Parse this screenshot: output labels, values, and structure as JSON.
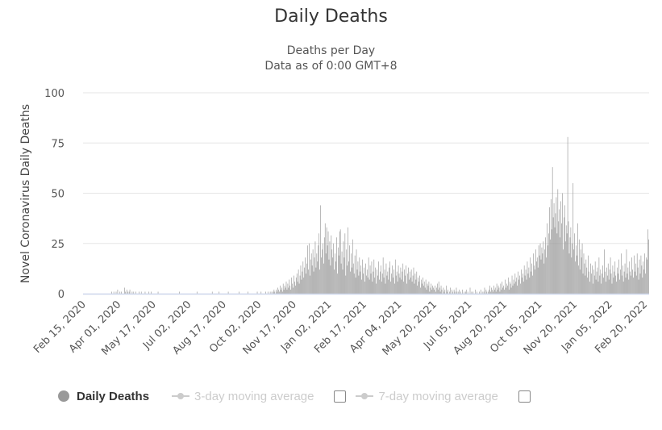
{
  "chart_data": {
    "type": "bar",
    "title": "Daily Deaths",
    "subtitle_lines": [
      "Deaths per Day",
      "Data as of 0:00 GMT+8"
    ],
    "ylabel": "Novel Coronavirus Daily Deaths",
    "xlabel": "",
    "ylim": [
      0,
      100
    ],
    "y_ticks": [
      0,
      25,
      50,
      75,
      100
    ],
    "x_start": "2020-02-15",
    "x_tick_interval_days": 46,
    "x_tick_labels": [
      "Feb 15, 2020",
      "Apr 01, 2020",
      "May 17, 2020",
      "Jul 02, 2020",
      "Aug 17, 2020",
      "Oct 02, 2020",
      "Nov 17, 2020",
      "Jan 02, 2021",
      "Feb 17, 2021",
      "Apr 04, 2021",
      "May 20, 2021",
      "Jul 05, 2021",
      "Aug 20, 2021",
      "Oct 05, 2021",
      "Nov 20, 2021",
      "Jan 05, 2022",
      "Feb 20, 2022"
    ],
    "grid": true,
    "bar_color": "#999999",
    "series": [
      {
        "name": "Daily Deaths",
        "values": [
          0,
          0,
          0,
          0,
          0,
          0,
          0,
          0,
          0,
          0,
          0,
          0,
          0,
          0,
          0,
          0,
          0,
          0,
          0,
          0,
          0,
          0,
          0,
          0,
          0,
          0,
          0,
          0,
          0,
          0,
          0,
          0,
          0,
          0,
          0,
          0,
          0,
          1,
          0,
          0,
          1,
          0,
          0,
          1,
          0,
          2,
          0,
          0,
          1,
          0,
          1,
          0,
          0,
          0,
          3,
          1,
          0,
          2,
          1,
          0,
          1,
          2,
          0,
          0,
          1,
          0,
          1,
          0,
          0,
          1,
          0,
          0,
          0,
          1,
          0,
          0,
          1,
          0,
          0,
          0,
          0,
          1,
          0,
          0,
          0,
          0,
          1,
          0,
          0,
          1,
          0,
          0,
          0,
          0,
          0,
          0,
          0,
          0,
          1,
          0,
          0,
          0,
          0,
          0,
          0,
          0,
          0,
          0,
          0,
          0,
          0,
          0,
          0,
          0,
          0,
          0,
          0,
          0,
          0,
          0,
          0,
          0,
          0,
          0,
          0,
          0,
          1,
          0,
          0,
          0,
          0,
          0,
          0,
          0,
          0,
          0,
          0,
          0,
          0,
          0,
          0,
          0,
          0,
          0,
          0,
          0,
          0,
          0,
          0,
          1,
          0,
          0,
          0,
          0,
          0,
          0,
          0,
          0,
          0,
          0,
          0,
          0,
          0,
          0,
          0,
          0,
          0,
          0,
          0,
          1,
          0,
          0,
          0,
          0,
          0,
          0,
          0,
          0,
          1,
          0,
          0,
          0,
          0,
          0,
          0,
          0,
          0,
          0,
          0,
          0,
          1,
          0,
          0,
          0,
          0,
          0,
          0,
          0,
          0,
          0,
          0,
          0,
          0,
          0,
          1,
          0,
          0,
          0,
          0,
          0,
          0,
          0,
          0,
          0,
          0,
          0,
          1,
          0,
          0,
          0,
          0,
          0,
          0,
          0,
          0,
          0,
          0,
          0,
          1,
          0,
          0,
          0,
          0,
          1,
          0,
          0,
          0,
          0,
          0,
          1,
          0,
          0,
          1,
          0,
          0,
          1,
          0,
          1,
          0,
          1,
          2,
          1,
          0,
          2,
          1,
          3,
          2,
          1,
          4,
          2,
          3,
          1,
          5,
          2,
          4,
          3,
          6,
          2,
          5,
          3,
          7,
          4,
          2,
          8,
          5,
          3,
          9,
          6,
          4,
          8,
          10,
          6,
          12,
          5,
          9,
          14,
          7,
          11,
          16,
          8,
          13,
          18,
          10,
          15,
          24,
          12,
          25,
          9,
          17,
          20,
          14,
          22,
          11,
          18,
          26,
          13,
          20,
          16,
          24,
          30,
          12,
          44,
          18,
          22,
          25,
          15,
          28,
          35,
          20,
          33,
          24,
          31,
          17,
          26,
          14,
          29,
          22,
          18,
          25,
          12,
          20,
          16,
          28,
          10,
          23,
          19,
          31,
          32,
          15,
          21,
          12,
          26,
          18,
          30,
          9,
          22,
          14,
          33,
          16,
          24,
          11,
          20,
          13,
          27,
          15,
          10,
          19,
          8,
          22,
          12,
          16,
          9,
          18,
          11,
          14,
          7,
          17,
          10,
          13,
          6,
          15,
          9,
          12,
          8,
          18,
          7,
          14,
          10,
          16,
          6,
          11,
          17,
          8,
          13,
          5,
          12,
          9,
          16,
          7,
          11,
          14,
          6,
          10,
          18,
          8,
          12,
          5,
          15,
          9,
          11,
          7,
          13,
          16,
          6,
          10,
          14,
          8,
          12,
          5,
          17,
          9,
          11,
          6,
          14,
          10,
          8,
          13,
          7,
          11,
          15,
          6,
          12,
          9,
          14,
          5,
          10,
          13,
          7,
          11,
          8,
          12,
          6,
          9,
          13,
          5,
          10,
          7,
          11,
          4,
          8,
          6,
          9,
          3,
          7,
          5,
          8,
          4,
          6,
          3,
          7,
          2,
          5,
          4,
          6,
          1,
          3,
          5,
          2,
          4,
          3,
          2,
          4,
          1,
          3,
          5,
          2,
          6,
          3,
          1,
          4,
          2,
          0,
          3,
          1,
          2,
          0,
          4,
          1,
          2,
          0,
          1,
          3,
          0,
          2,
          1,
          0,
          2,
          1,
          0,
          3,
          1,
          0,
          1,
          2,
          0,
          1,
          0,
          2,
          0,
          1,
          0,
          1,
          2,
          0,
          1,
          0,
          0,
          3,
          0,
          1,
          0,
          1,
          0,
          0,
          2,
          0,
          1,
          0,
          0,
          1,
          0,
          2,
          0,
          1,
          0,
          1,
          3,
          0,
          2,
          1,
          0,
          1,
          2,
          4,
          1,
          3,
          2,
          1,
          4,
          2,
          3,
          1,
          5,
          2,
          4,
          3,
          1,
          5,
          2,
          6,
          3,
          4,
          2,
          7,
          3,
          5,
          4,
          8,
          2,
          6,
          5,
          3,
          9,
          4,
          7,
          5,
          10,
          6,
          8,
          4,
          11,
          7,
          9,
          5,
          12,
          8,
          10,
          6,
          14,
          9,
          12,
          7,
          16,
          10,
          13,
          8,
          18,
          11,
          15,
          9,
          20,
          14,
          12,
          22,
          16,
          18,
          13,
          24,
          19,
          25,
          17,
          23,
          20,
          26,
          15,
          22,
          28,
          18,
          35,
          24,
          30,
          43,
          27,
          47,
          32,
          63,
          38,
          45,
          33,
          40,
          48,
          30,
          52,
          36,
          42,
          28,
          46,
          35,
          50,
          22,
          38,
          44,
          26,
          34,
          30,
          78,
          36,
          20,
          28,
          33,
          18,
          25,
          55,
          22,
          30,
          16,
          24,
          19,
          35,
          14,
          27,
          12,
          22,
          18,
          25,
          10,
          20,
          15,
          9,
          17,
          13,
          8,
          19,
          11,
          6,
          15,
          10,
          14,
          5,
          12,
          9,
          16,
          7,
          11,
          13,
          6,
          18,
          9,
          12,
          5,
          10,
          14,
          8,
          22,
          11,
          6,
          13,
          9,
          15,
          7,
          12,
          18,
          10,
          5,
          14,
          8,
          11,
          16,
          9,
          6,
          13,
          10,
          17,
          7,
          12,
          20,
          9,
          14,
          6,
          11,
          15,
          8,
          22,
          10,
          13,
          7,
          16,
          11,
          9,
          18,
          12,
          8,
          19,
          11,
          15,
          9,
          20,
          13,
          7,
          17,
          10,
          19,
          14,
          8,
          16,
          12,
          20,
          10,
          18,
          17,
          32,
          27
        ]
      }
    ]
  },
  "legend": {
    "items": [
      {
        "label": "Daily Deaths",
        "active": true,
        "color": "#999999"
      },
      {
        "label": "3-day moving average",
        "active": false
      },
      {
        "label": "7-day moving average",
        "active": false
      }
    ],
    "placement": "bottom"
  }
}
